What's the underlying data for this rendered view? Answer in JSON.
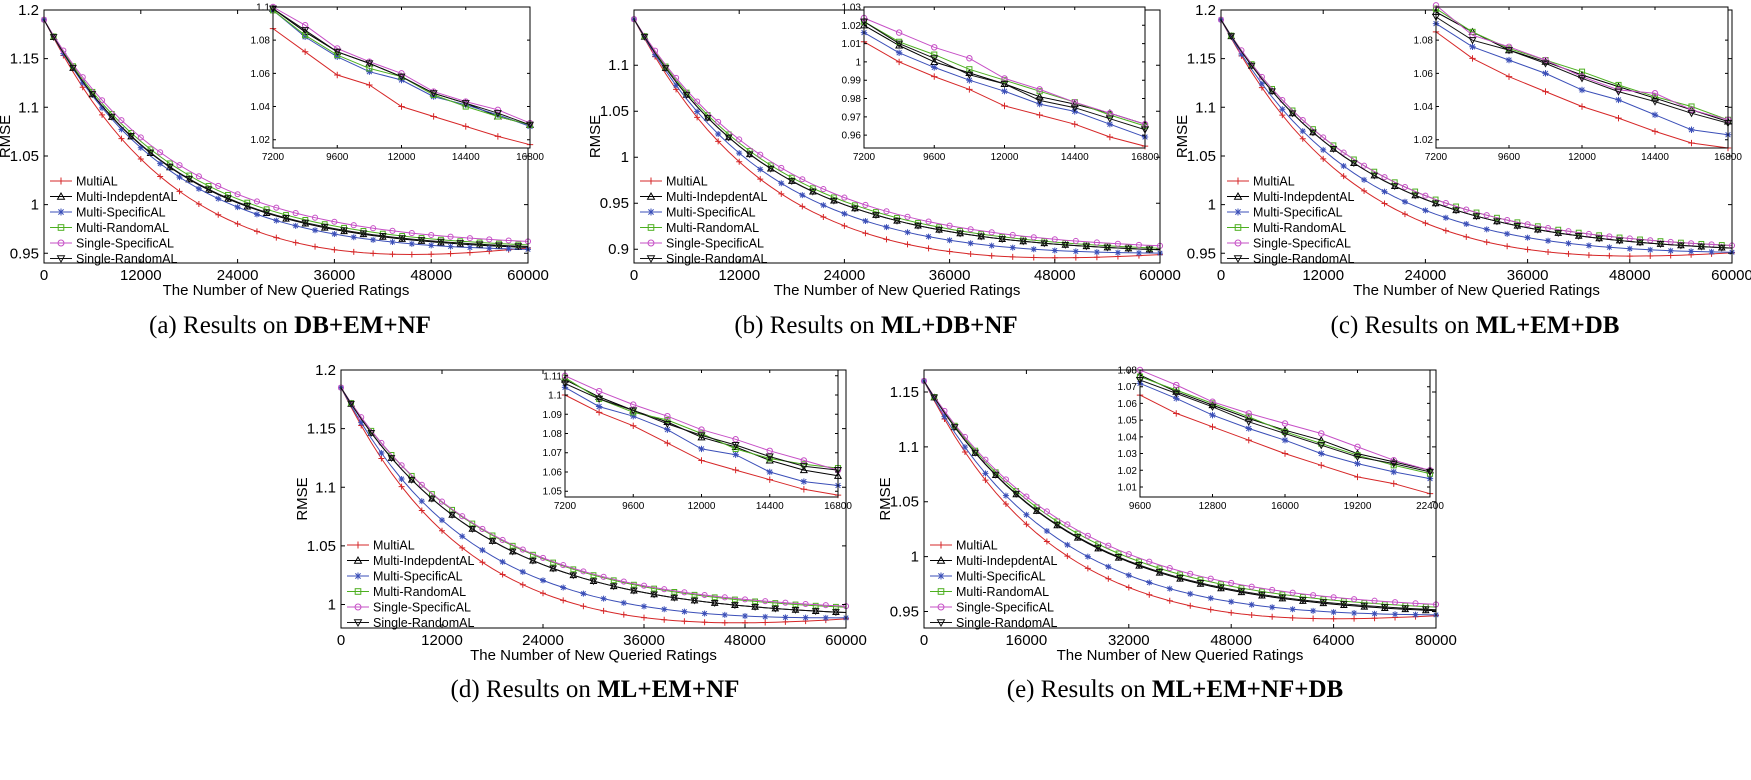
{
  "figure": {
    "series_names": [
      "MultiAL",
      "Multi-IndepdentAL",
      "Multi-SpecificAL",
      "Multi-RandomAL",
      "Single-SpecificAL",
      "Single-RandomAL"
    ],
    "series_colors": [
      "#d62728",
      "#000000",
      "#3b4fb8",
      "#4caf1f",
      "#c64fc6",
      "#111111"
    ],
    "series_markers": [
      "plus",
      "triangle-up",
      "star",
      "square",
      "circle",
      "triangle-down"
    ]
  },
  "chart_data": [
    {
      "id": "a",
      "type": "line",
      "caption_prefix": "(a)",
      "caption_text": "Results on",
      "caption_bold": "DB+EM+NF",
      "xlabel": "The Number of New Queried Ratings",
      "ylabel": "RMSE",
      "xlim": [
        0,
        60000
      ],
      "ylim": [
        0.94,
        1.2
      ],
      "xticks": [
        0,
        12000,
        24000,
        36000,
        48000,
        60000
      ],
      "xtick_labels": [
        "0",
        "12000",
        "24000",
        "36000",
        "48000",
        "60000"
      ],
      "yticks": [
        0.95,
        1,
        1.05,
        1.1,
        1.15,
        1.2
      ],
      "ytick_labels": [
        "0.95",
        "1",
        "1.05",
        "1.1",
        "1.15",
        "1.2"
      ],
      "main": {
        "start": 1.19,
        "end": [
          0.951,
          0.951,
          0.949,
          0.953,
          0.956,
          0.952
        ],
        "tau": [
          15000,
          15500,
          15500,
          16000,
          16500,
          15500
        ],
        "dip": [
          0.02,
          0,
          0.003,
          0,
          0,
          0
        ]
      },
      "inset": {
        "xlim": [
          7200,
          16800
        ],
        "ylim": [
          1.015,
          1.1
        ],
        "xticks": [
          7200,
          9600,
          12000,
          14400,
          16800
        ],
        "xtick_labels": [
          "7200",
          "9600",
          "12000",
          "14400",
          "16800"
        ],
        "yticks": [
          1.02,
          1.04,
          1.06,
          1.08,
          1.1
        ],
        "ytick_labels": [
          "1.02",
          "1.04",
          "1.06",
          "1.08",
          "1.1"
        ],
        "x": [
          7200,
          8400,
          9600,
          10800,
          12000,
          13200,
          14400,
          15600,
          16800
        ],
        "series": [
          [
            1.087,
            1.073,
            1.059,
            1.053,
            1.04,
            1.034,
            1.028,
            1.022,
            1.017
          ],
          [
            1.099,
            1.085,
            1.073,
            1.066,
            1.058,
            1.048,
            1.042,
            1.034,
            1.029
          ],
          [
            1.098,
            1.082,
            1.07,
            1.061,
            1.056,
            1.046,
            1.041,
            1.035,
            1.028
          ],
          [
            1.098,
            1.083,
            1.071,
            1.063,
            1.058,
            1.047,
            1.04,
            1.034,
            1.029
          ],
          [
            1.1,
            1.089,
            1.075,
            1.067,
            1.06,
            1.049,
            1.043,
            1.038,
            1.03
          ],
          [
            1.099,
            1.086,
            1.073,
            1.066,
            1.058,
            1.048,
            1.042,
            1.036,
            1.029
          ]
        ]
      }
    },
    {
      "id": "b",
      "type": "line",
      "caption_prefix": "(b)",
      "caption_text": "Results on",
      "caption_bold": "ML+DB+NF",
      "xlabel": "The Number of New Queried Ratings",
      "ylabel": "RMSE",
      "xlim": [
        0,
        60000
      ],
      "ylim": [
        0.885,
        1.16
      ],
      "xticks": [
        0,
        12000,
        24000,
        36000,
        48000,
        60000
      ],
      "xtick_labels": [
        "0",
        "12000",
        "24000",
        "36000",
        "48000",
        "60000"
      ],
      "yticks": [
        0.9,
        0.95,
        1,
        1.05,
        1.1
      ],
      "ytick_labels": [
        "0.9",
        "0.95",
        "1",
        "1.05",
        "1.1"
      ],
      "main": {
        "start": 1.15,
        "end": [
          0.89,
          0.894,
          0.891,
          0.895,
          0.897,
          0.894
        ],
        "tau": [
          14500,
          15500,
          15000,
          16000,
          16500,
          15500
        ],
        "dip": [
          0.015,
          0,
          0.005,
          0,
          0,
          0
        ]
      },
      "inset": {
        "xlim": [
          7200,
          16800
        ],
        "ylim": [
          0.953,
          1.03
        ],
        "xticks": [
          7200,
          9600,
          12000,
          14400,
          16800
        ],
        "xtick_labels": [
          "7200",
          "9600",
          "12000",
          "14400",
          "16800"
        ],
        "yticks": [
          0.96,
          0.97,
          0.98,
          0.99,
          1,
          1.01,
          1.02,
          1.03
        ],
        "ytick_labels": [
          "0.96",
          "0.97",
          "0.98",
          "0.99",
          "1",
          "1.01",
          "1.02",
          "1.03"
        ],
        "x": [
          7200,
          8400,
          9600,
          10800,
          12000,
          13200,
          14400,
          15600,
          16800
        ],
        "series": [
          [
            1.011,
            1.0,
            0.992,
            0.985,
            0.976,
            0.971,
            0.966,
            0.959,
            0.954
          ],
          [
            1.02,
            1.009,
            1.0,
            0.994,
            0.988,
            0.981,
            0.977,
            0.972,
            0.966
          ],
          [
            1.016,
            1.005,
            0.997,
            0.99,
            0.984,
            0.977,
            0.973,
            0.966,
            0.959
          ],
          [
            1.022,
            1.011,
            1.004,
            0.996,
            0.99,
            0.984,
            0.978,
            0.971,
            0.965
          ],
          [
            1.024,
            1.016,
            1.008,
            1.002,
            0.991,
            0.985,
            0.978,
            0.972,
            0.966
          ],
          [
            1.022,
            1.01,
            1.002,
            0.993,
            0.988,
            0.979,
            0.975,
            0.969,
            0.963
          ]
        ]
      }
    },
    {
      "id": "c",
      "type": "line",
      "caption_prefix": "(c)",
      "caption_text": "Results on",
      "caption_bold": "ML+EM+DB",
      "xlabel": "The Number of New Queried Ratings",
      "ylabel": "RMSE",
      "xlim": [
        0,
        60000
      ],
      "ylim": [
        0.94,
        1.2
      ],
      "xticks": [
        0,
        12000,
        24000,
        36000,
        48000,
        60000
      ],
      "xtick_labels": [
        "0",
        "12000",
        "24000",
        "36000",
        "48000",
        "60000"
      ],
      "yticks": [
        0.95,
        1,
        1.05,
        1.1,
        1.15,
        1.2
      ],
      "ytick_labels": [
        "0.95",
        "1",
        "1.05",
        "1.1",
        "1.15",
        "1.2"
      ],
      "main": {
        "start": 1.19,
        "end": [
          0.946,
          0.949,
          0.946,
          0.951,
          0.951,
          0.949
        ],
        "tau": [
          15000,
          16500,
          15500,
          17000,
          17000,
          16500
        ],
        "dip": [
          0.015,
          0,
          0.004,
          0,
          0,
          0
        ]
      },
      "inset": {
        "xlim": [
          7200,
          16800
        ],
        "ylim": [
          1.015,
          1.1
        ],
        "xticks": [
          7200,
          9600,
          12000,
          14400,
          16800
        ],
        "xtick_labels": [
          "7200",
          "9600",
          "12000",
          "14400",
          "16800"
        ],
        "yticks": [
          1.02,
          1.04,
          1.06,
          1.08
        ],
        "ytick_labels": [
          "1.02",
          "1.04",
          "1.06",
          "1.08"
        ],
        "x": [
          7200,
          8400,
          9600,
          10800,
          12000,
          13200,
          14400,
          15600,
          16800
        ],
        "series": [
          [
            1.085,
            1.069,
            1.058,
            1.049,
            1.04,
            1.033,
            1.025,
            1.018,
            1.015
          ],
          [
            1.097,
            1.085,
            1.074,
            1.067,
            1.059,
            1.052,
            1.045,
            1.038,
            1.031
          ],
          [
            1.09,
            1.076,
            1.068,
            1.06,
            1.05,
            1.044,
            1.035,
            1.026,
            1.023
          ],
          [
            1.099,
            1.085,
            1.075,
            1.068,
            1.061,
            1.053,
            1.046,
            1.04,
            1.032
          ],
          [
            1.101,
            1.083,
            1.076,
            1.068,
            1.058,
            1.05,
            1.048,
            1.038,
            1.032
          ],
          [
            1.094,
            1.08,
            1.074,
            1.066,
            1.057,
            1.049,
            1.043,
            1.036,
            1.03
          ]
        ]
      }
    },
    {
      "id": "d",
      "type": "line",
      "caption_prefix": "(d)",
      "caption_text": "Results on",
      "caption_bold": "ML+EM+NF",
      "xlabel": "The Number of New Queried Ratings",
      "ylabel": "RMSE",
      "xlim": [
        0,
        60000
      ],
      "ylim": [
        0.98,
        1.2
      ],
      "xticks": [
        0,
        12000,
        24000,
        36000,
        48000,
        60000
      ],
      "xtick_labels": [
        "0",
        "12000",
        "24000",
        "36000",
        "48000",
        "60000"
      ],
      "yticks": [
        1,
        1.05,
        1.1,
        1.15,
        1.2
      ],
      "ytick_labels": [
        "1",
        "1.05",
        "1.1",
        "1.15",
        "1.2"
      ],
      "main": {
        "start": 1.185,
        "end": [
          0.985,
          0.988,
          0.985,
          0.992,
          0.993,
          0.988
        ],
        "tau": [
          14000,
          16500,
          15000,
          17000,
          17000,
          16500
        ],
        "dip": [
          0.012,
          0,
          0.005,
          0,
          0,
          0
        ]
      },
      "inset": {
        "xlim": [
          7200,
          16800
        ],
        "ylim": [
          1.047,
          1.113
        ],
        "xticks": [
          7200,
          9600,
          12000,
          14400,
          16800
        ],
        "xtick_labels": [
          "7200",
          "9600",
          "12000",
          "14400",
          "16800"
        ],
        "yticks": [
          1.05,
          1.06,
          1.07,
          1.08,
          1.09,
          1.1,
          1.11
        ],
        "ytick_labels": [
          "1.05",
          "1.06",
          "1.07",
          "1.08",
          "1.09",
          "1.1",
          "1.11"
        ],
        "x": [
          7200,
          8400,
          9600,
          10800,
          12000,
          13200,
          14400,
          15600,
          16800
        ],
        "series": [
          [
            1.1,
            1.091,
            1.084,
            1.075,
            1.066,
            1.061,
            1.056,
            1.051,
            1.048
          ],
          [
            1.108,
            1.099,
            1.092,
            1.086,
            1.078,
            1.073,
            1.066,
            1.061,
            1.058
          ],
          [
            1.104,
            1.094,
            1.089,
            1.082,
            1.072,
            1.069,
            1.06,
            1.055,
            1.053
          ],
          [
            1.109,
            1.098,
            1.091,
            1.087,
            1.08,
            1.072,
            1.067,
            1.064,
            1.062
          ],
          [
            1.11,
            1.102,
            1.095,
            1.089,
            1.082,
            1.077,
            1.071,
            1.066,
            1.061
          ],
          [
            1.106,
            1.098,
            1.092,
            1.085,
            1.079,
            1.074,
            1.068,
            1.063,
            1.061
          ]
        ]
      }
    },
    {
      "id": "e",
      "type": "line",
      "caption_prefix": "(e)",
      "caption_text": "Results on",
      "caption_bold": "ML+EM+NF+DB",
      "xlabel": "The Number of New Queried Ratings",
      "ylabel": "RMSE",
      "xlim": [
        0,
        80000
      ],
      "ylim": [
        0.935,
        1.17
      ],
      "xticks": [
        0,
        16000,
        32000,
        48000,
        64000,
        80000
      ],
      "xtick_labels": [
        "0",
        "16000",
        "32000",
        "48000",
        "64000",
        "80000"
      ],
      "yticks": [
        0.95,
        1,
        1.05,
        1.1,
        1.15
      ],
      "ytick_labels": [
        "0.95",
        "1",
        "1.05",
        "1.1",
        "1.15"
      ],
      "main": {
        "start": 1.16,
        "end": [
          0.943,
          0.945,
          0.943,
          0.948,
          0.95,
          0.946
        ],
        "tau": [
          19000,
          22000,
          20000,
          22500,
          23000,
          22000
        ],
        "dip": [
          0.012,
          0,
          0.004,
          0,
          0,
          0
        ]
      },
      "inset": {
        "xlim": [
          9600,
          22400
        ],
        "ylim": [
          1.004,
          1.08
        ],
        "xticks": [
          9600,
          12800,
          16000,
          19200,
          22400
        ],
        "xtick_labels": [
          "9600",
          "12800",
          "16000",
          "19200",
          "22400"
        ],
        "yticks": [
          1.01,
          1.02,
          1.03,
          1.04,
          1.05,
          1.06,
          1.07,
          1.08
        ],
        "ytick_labels": [
          "1.01",
          "1.02",
          "1.03",
          "1.04",
          "1.05",
          "1.06",
          "1.07",
          "1.08"
        ],
        "x": [
          9600,
          11200,
          12800,
          14400,
          16000,
          17600,
          19200,
          20800,
          22400
        ],
        "series": [
          [
            1.065,
            1.054,
            1.046,
            1.038,
            1.03,
            1.023,
            1.016,
            1.012,
            1.006
          ],
          [
            1.077,
            1.067,
            1.059,
            1.051,
            1.044,
            1.038,
            1.03,
            1.025,
            1.02
          ],
          [
            1.072,
            1.063,
            1.053,
            1.045,
            1.038,
            1.03,
            1.024,
            1.019,
            1.015
          ],
          [
            1.076,
            1.068,
            1.06,
            1.052,
            1.043,
            1.036,
            1.029,
            1.023,
            1.018
          ],
          [
            1.08,
            1.071,
            1.061,
            1.054,
            1.048,
            1.042,
            1.034,
            1.026,
            1.02
          ],
          [
            1.074,
            1.066,
            1.058,
            1.049,
            1.042,
            1.035,
            1.028,
            1.024,
            1.019
          ]
        ]
      }
    }
  ]
}
